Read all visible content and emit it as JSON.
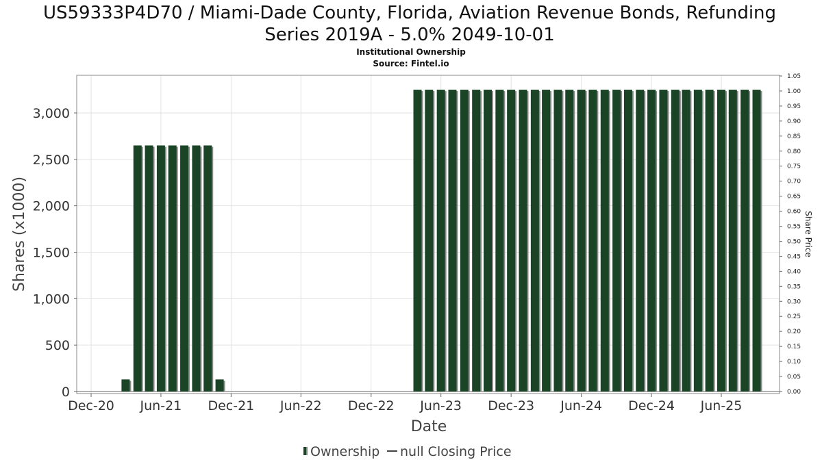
{
  "title_line1": "US59333P4D70 / Miami-Dade County, Florida, Aviation Revenue Bonds, Refunding",
  "title_line2": "Series 2019A - 5.0% 2049-10-01",
  "subtitle": "Institutional Ownership",
  "source": "Source: Fintel.io",
  "legend": {
    "ownership": "Ownership",
    "price": "null Closing Price"
  },
  "colors": {
    "bar": "#1a4425",
    "bar_shadow": "#8a8a8a",
    "grid": "#e2e2e2",
    "frame": "#888888"
  },
  "chart_data": {
    "type": "bar",
    "xlabel": "Date",
    "ylabel": "Shares (x1000)",
    "y2label": "Share Price",
    "ylim": [
      0,
      3400
    ],
    "y2lim": [
      0,
      1.05
    ],
    "x_range": [
      "2020-11-01",
      "2025-11-01"
    ],
    "x_ticks": [
      {
        "date": "2020-12-01",
        "label": "Dec-20"
      },
      {
        "date": "2021-06-01",
        "label": "Jun-21"
      },
      {
        "date": "2021-12-01",
        "label": "Dec-21"
      },
      {
        "date": "2022-06-01",
        "label": "Jun-22"
      },
      {
        "date": "2022-12-01",
        "label": "Dec-22"
      },
      {
        "date": "2023-06-01",
        "label": "Jun-23"
      },
      {
        "date": "2023-12-01",
        "label": "Dec-23"
      },
      {
        "date": "2024-06-01",
        "label": "Jun-24"
      },
      {
        "date": "2024-12-01",
        "label": "Dec-24"
      },
      {
        "date": "2025-06-01",
        "label": "Jun-25"
      }
    ],
    "y_ticks": [
      {
        "value": 0,
        "label": "0"
      },
      {
        "value": 500,
        "label": "500"
      },
      {
        "value": 1000,
        "label": "1,000"
      },
      {
        "value": 1500,
        "label": "1,500"
      },
      {
        "value": 2000,
        "label": "2,000"
      },
      {
        "value": 2500,
        "label": "2,500"
      },
      {
        "value": 3000,
        "label": "3,000"
      }
    ],
    "y2_ticks": [
      "0.00",
      "0.05",
      "0.10",
      "0.15",
      "0.20",
      "0.25",
      "0.30",
      "0.35",
      "0.40",
      "0.45",
      "0.50",
      "0.55",
      "0.60",
      "0.65",
      "0.70",
      "0.75",
      "0.80",
      "0.85",
      "0.90",
      "0.95",
      "1.00",
      "1.05"
    ],
    "grid": true,
    "legend_position": "bottom",
    "bars": [
      {
        "date": "2021-03-01",
        "value": 130
      },
      {
        "date": "2021-04-01",
        "value": 2650
      },
      {
        "date": "2021-05-01",
        "value": 2650
      },
      {
        "date": "2021-06-01",
        "value": 2650
      },
      {
        "date": "2021-07-01",
        "value": 2650
      },
      {
        "date": "2021-08-01",
        "value": 2650
      },
      {
        "date": "2021-09-01",
        "value": 2650
      },
      {
        "date": "2021-10-01",
        "value": 2650
      },
      {
        "date": "2021-11-01",
        "value": 130
      },
      {
        "date": "2023-04-01",
        "value": 3250
      },
      {
        "date": "2023-05-01",
        "value": 3250
      },
      {
        "date": "2023-06-01",
        "value": 3250
      },
      {
        "date": "2023-07-01",
        "value": 3250
      },
      {
        "date": "2023-08-01",
        "value": 3250
      },
      {
        "date": "2023-09-01",
        "value": 3250
      },
      {
        "date": "2023-10-01",
        "value": 3250
      },
      {
        "date": "2023-11-01",
        "value": 3250
      },
      {
        "date": "2023-12-01",
        "value": 3250
      },
      {
        "date": "2024-01-01",
        "value": 3250
      },
      {
        "date": "2024-02-01",
        "value": 3250
      },
      {
        "date": "2024-03-01",
        "value": 3250
      },
      {
        "date": "2024-04-01",
        "value": 3250
      },
      {
        "date": "2024-05-01",
        "value": 3250
      },
      {
        "date": "2024-06-01",
        "value": 3250
      },
      {
        "date": "2024-07-01",
        "value": 3250
      },
      {
        "date": "2024-08-01",
        "value": 3250
      },
      {
        "date": "2024-09-01",
        "value": 3250
      },
      {
        "date": "2024-10-01",
        "value": 3250
      },
      {
        "date": "2024-11-01",
        "value": 3250
      },
      {
        "date": "2024-12-01",
        "value": 3250
      },
      {
        "date": "2025-01-01",
        "value": 3250
      },
      {
        "date": "2025-02-01",
        "value": 3250
      },
      {
        "date": "2025-03-01",
        "value": 3250
      },
      {
        "date": "2025-04-01",
        "value": 3250
      },
      {
        "date": "2025-05-01",
        "value": 3250
      },
      {
        "date": "2025-06-01",
        "value": 3250
      },
      {
        "date": "2025-07-01",
        "value": 3250
      },
      {
        "date": "2025-08-01",
        "value": 3250
      },
      {
        "date": "2025-09-01",
        "value": 3250
      }
    ]
  }
}
